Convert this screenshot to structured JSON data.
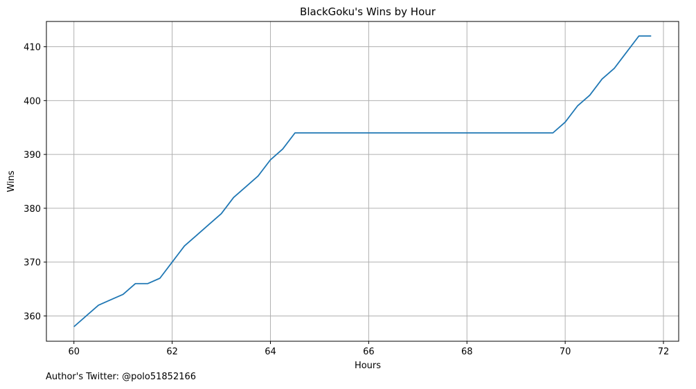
{
  "chart_data": {
    "type": "line",
    "title": "BlackGoku's Wins by Hour",
    "xlabel": "Hours",
    "ylabel": "Wins",
    "xlim": [
      59.44,
      72.31
    ],
    "ylim": [
      355.3,
      414.7
    ],
    "xticks": [
      60,
      62,
      64,
      66,
      68,
      70,
      72
    ],
    "yticks": [
      360,
      370,
      380,
      390,
      400,
      410
    ],
    "grid": true,
    "series": [
      {
        "color": "#1f77b4",
        "x": [
          60.0,
          60.25,
          60.5,
          60.75,
          61.0,
          61.25,
          61.5,
          61.75,
          62.0,
          62.25,
          62.5,
          62.75,
          63.0,
          63.25,
          63.5,
          63.75,
          64.0,
          64.25,
          64.5,
          64.75,
          65.0,
          65.5,
          66.0,
          66.5,
          67.0,
          67.5,
          68.0,
          68.5,
          69.0,
          69.5,
          69.75,
          70.0,
          70.25,
          70.5,
          70.75,
          71.0,
          71.25,
          71.5,
          71.75
        ],
        "y": [
          358,
          360,
          362,
          363,
          364,
          366,
          366,
          367,
          370,
          373,
          375,
          377,
          379,
          382,
          384,
          386,
          389,
          391,
          394,
          394,
          394,
          394,
          394,
          394,
          394,
          394,
          394,
          394,
          394,
          394,
          394,
          396,
          399,
          401,
          404,
          406,
          409,
          412,
          412
        ]
      }
    ]
  },
  "footer": "Author's Twitter: @polo51852166"
}
